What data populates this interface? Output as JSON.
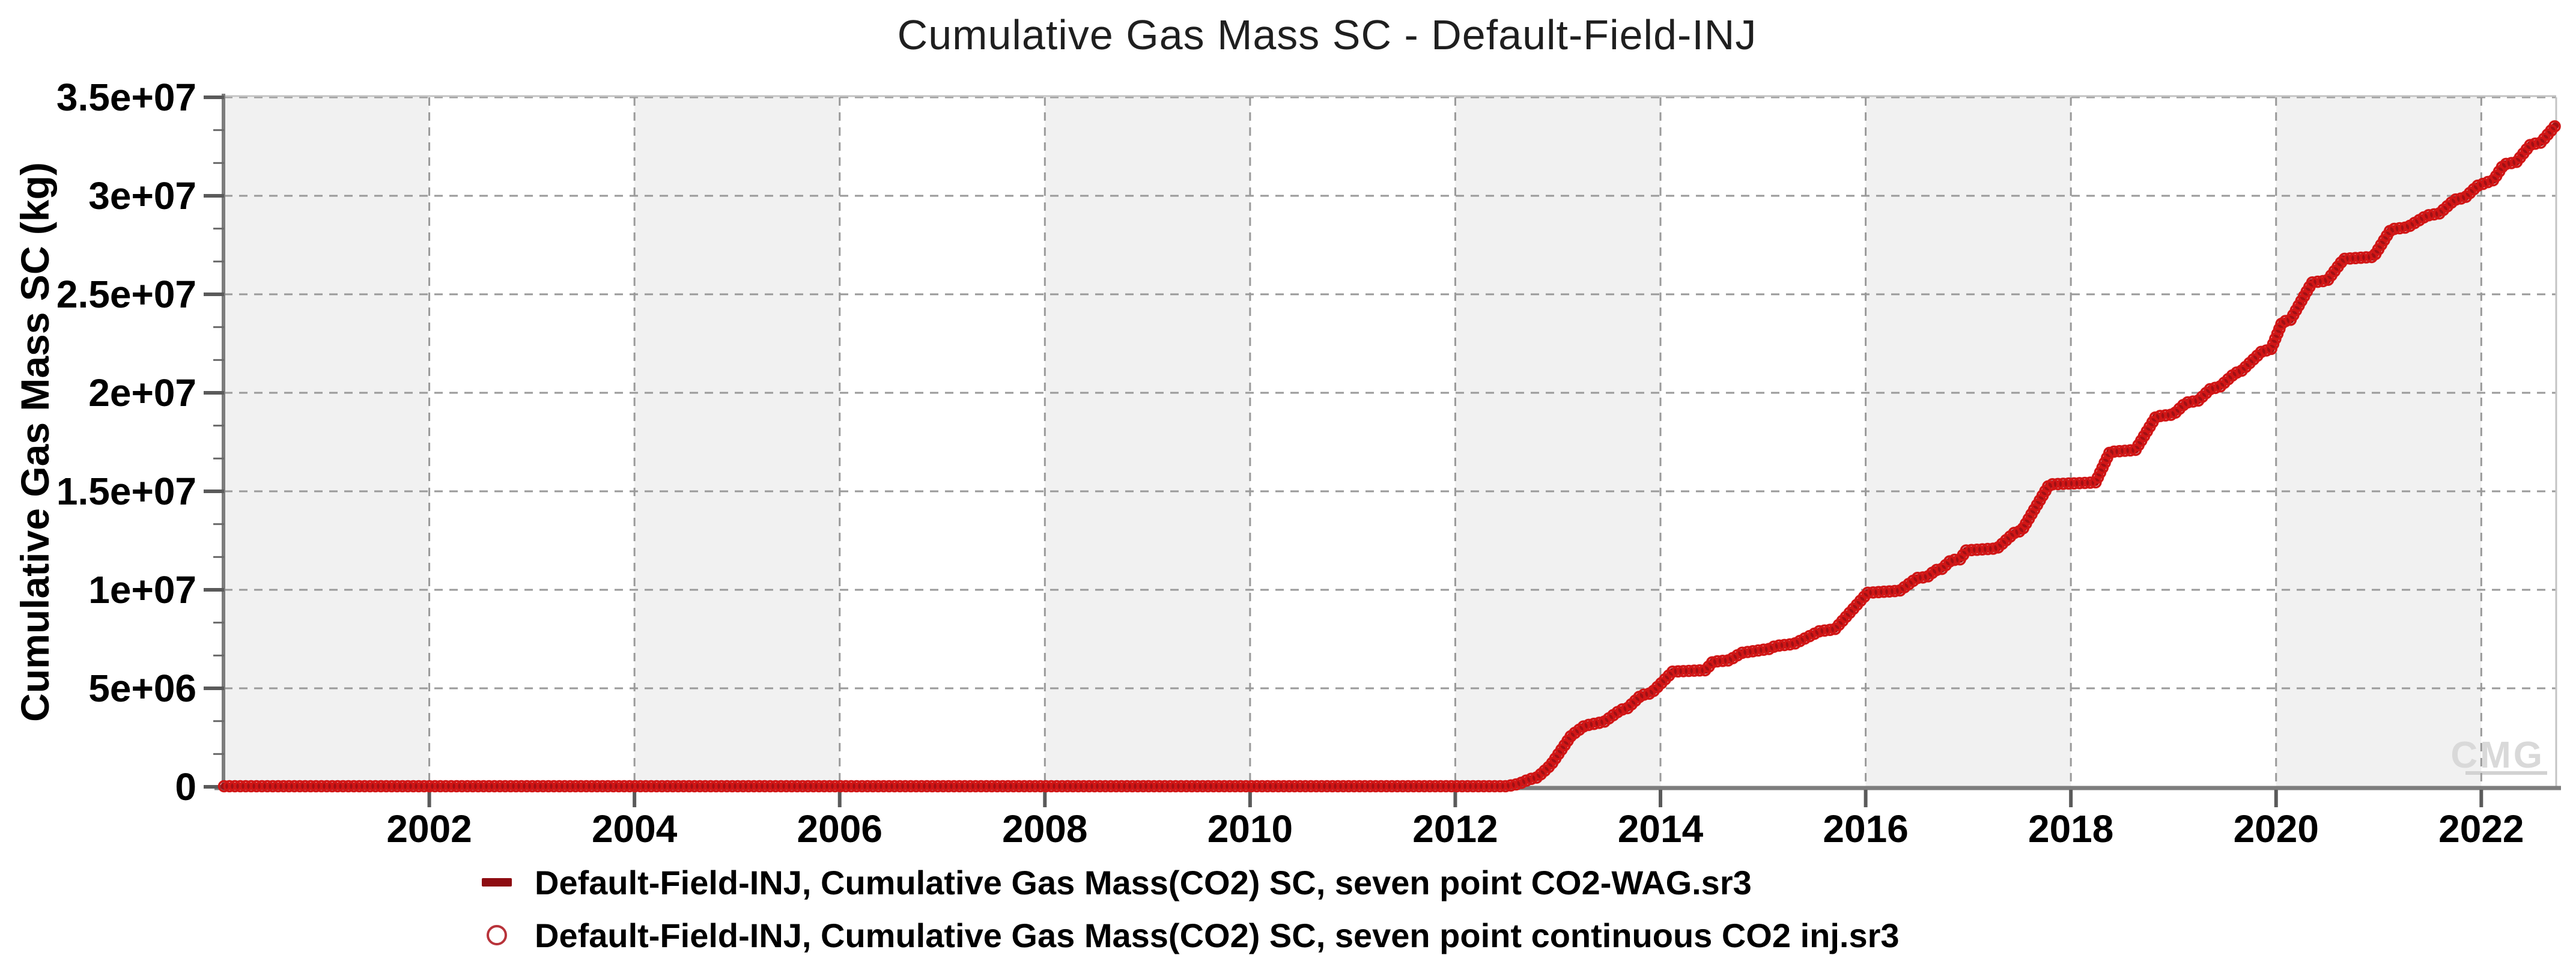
{
  "title": "Cumulative Gas Mass SC - Default-Field-INJ",
  "watermark": "CMG",
  "chart_data": {
    "type": "line",
    "title": "Cumulative Gas Mass SC - Default-Field-INJ",
    "xlabel": "",
    "ylabel": "Cumulative Gas Mass SC (kg)",
    "xlim": [
      2000,
      2022.73
    ],
    "ylim": [
      0,
      35000000
    ],
    "grid": "dashed-major",
    "legend_position": "bottom-left",
    "band_gray_color": "#f1f1f1",
    "band_white_color": "#ffffff",
    "grid_color": "#9a9a9a",
    "axis_color": "#7d7d7d",
    "x_ticks": [
      2002,
      2004,
      2006,
      2008,
      2010,
      2012,
      2014,
      2016,
      2018,
      2020,
      2022
    ],
    "y_ticks": [
      {
        "label": "0",
        "value": 0
      },
      {
        "label": "5e+06",
        "value": 5000000
      },
      {
        "label": "1e+07",
        "value": 10000000
      },
      {
        "label": "1.5e+07",
        "value": 15000000
      },
      {
        "label": "2e+07",
        "value": 20000000
      },
      {
        "label": "2.5e+07",
        "value": 25000000
      },
      {
        "label": "3e+07",
        "value": 30000000
      },
      {
        "label": "3.5e+07",
        "value": 35000000
      }
    ],
    "y_minor_divisions": 3,
    "series": [
      {
        "name": "Default-Field-INJ, Cumulative Gas Mass(CO2) SC, seven point CO2-WAG.sr3",
        "marker": "dash",
        "color": "#a01014",
        "legend_color": "#8e0d12",
        "points": [
          [
            2000.0,
            30000
          ],
          [
            2012.5,
            30000
          ],
          [
            2012.62,
            150000
          ],
          [
            2012.72,
            380000
          ],
          [
            2012.8,
            480000
          ],
          [
            2012.93,
            1100000
          ],
          [
            2013.05,
            2000000
          ],
          [
            2013.13,
            2600000
          ],
          [
            2013.26,
            3100000
          ],
          [
            2013.45,
            3300000
          ],
          [
            2013.61,
            3900000
          ],
          [
            2013.68,
            4000000
          ],
          [
            2013.81,
            4650000
          ],
          [
            2013.91,
            4750000
          ],
          [
            2014.12,
            5850000
          ],
          [
            2014.44,
            5920000
          ],
          [
            2014.51,
            6350000
          ],
          [
            2014.67,
            6420000
          ],
          [
            2014.79,
            6800000
          ],
          [
            2015.06,
            7000000
          ],
          [
            2015.12,
            7150000
          ],
          [
            2015.3,
            7250000
          ],
          [
            2015.55,
            7900000
          ],
          [
            2015.7,
            8000000
          ],
          [
            2016.02,
            9850000
          ],
          [
            2016.33,
            9950000
          ],
          [
            2016.5,
            10600000
          ],
          [
            2016.6,
            10650000
          ],
          [
            2016.68,
            11000000
          ],
          [
            2016.74,
            11050000
          ],
          [
            2016.83,
            11500000
          ],
          [
            2016.92,
            11550000
          ],
          [
            2016.98,
            12000000
          ],
          [
            2017.28,
            12100000
          ],
          [
            2017.45,
            12900000
          ],
          [
            2017.52,
            13000000
          ],
          [
            2017.79,
            15350000
          ],
          [
            2018.24,
            15450000
          ],
          [
            2018.38,
            17000000
          ],
          [
            2018.63,
            17100000
          ],
          [
            2018.83,
            18800000
          ],
          [
            2019.0,
            18900000
          ],
          [
            2019.12,
            19500000
          ],
          [
            2019.24,
            19600000
          ],
          [
            2019.36,
            20200000
          ],
          [
            2019.45,
            20300000
          ],
          [
            2019.6,
            21000000
          ],
          [
            2019.66,
            21100000
          ],
          [
            2019.86,
            22100000
          ],
          [
            2019.95,
            22200000
          ],
          [
            2020.06,
            23600000
          ],
          [
            2020.14,
            23700000
          ],
          [
            2020.35,
            25600000
          ],
          [
            2020.5,
            25700000
          ],
          [
            2020.66,
            26800000
          ],
          [
            2020.95,
            26900000
          ],
          [
            2021.12,
            28300000
          ],
          [
            2021.28,
            28400000
          ],
          [
            2021.47,
            29000000
          ],
          [
            2021.59,
            29100000
          ],
          [
            2021.74,
            29800000
          ],
          [
            2021.84,
            29900000
          ],
          [
            2021.96,
            30500000
          ],
          [
            2022.12,
            30800000
          ],
          [
            2022.22,
            31600000
          ],
          [
            2022.34,
            31700000
          ],
          [
            2022.48,
            32600000
          ],
          [
            2022.58,
            32700000
          ],
          [
            2022.72,
            33550000
          ]
        ]
      },
      {
        "name": "Default-Field-INJ, Cumulative Gas Mass(CO2) SC, seven point continuous CO2 inj.sr3",
        "marker": "circle",
        "color": "#d11616",
        "legend_color": "#b8333a",
        "points": [
          [
            2000.0,
            30000
          ],
          [
            2012.5,
            30000
          ],
          [
            2012.62,
            150000
          ],
          [
            2012.72,
            380000
          ],
          [
            2012.8,
            480000
          ],
          [
            2012.93,
            1100000
          ],
          [
            2013.05,
            2000000
          ],
          [
            2013.13,
            2600000
          ],
          [
            2013.26,
            3100000
          ],
          [
            2013.45,
            3300000
          ],
          [
            2013.61,
            3900000
          ],
          [
            2013.68,
            4000000
          ],
          [
            2013.81,
            4650000
          ],
          [
            2013.91,
            4750000
          ],
          [
            2014.12,
            5850000
          ],
          [
            2014.44,
            5920000
          ],
          [
            2014.51,
            6350000
          ],
          [
            2014.67,
            6420000
          ],
          [
            2014.79,
            6800000
          ],
          [
            2015.06,
            7000000
          ],
          [
            2015.12,
            7150000
          ],
          [
            2015.3,
            7250000
          ],
          [
            2015.55,
            7900000
          ],
          [
            2015.7,
            8000000
          ],
          [
            2016.02,
            9850000
          ],
          [
            2016.33,
            9950000
          ],
          [
            2016.5,
            10600000
          ],
          [
            2016.6,
            10650000
          ],
          [
            2016.68,
            11000000
          ],
          [
            2016.74,
            11050000
          ],
          [
            2016.83,
            11500000
          ],
          [
            2016.92,
            11550000
          ],
          [
            2016.98,
            12000000
          ],
          [
            2017.28,
            12100000
          ],
          [
            2017.45,
            12900000
          ],
          [
            2017.52,
            13000000
          ],
          [
            2017.79,
            15350000
          ],
          [
            2018.24,
            15450000
          ],
          [
            2018.38,
            17000000
          ],
          [
            2018.63,
            17100000
          ],
          [
            2018.83,
            18800000
          ],
          [
            2019.0,
            18900000
          ],
          [
            2019.12,
            19500000
          ],
          [
            2019.24,
            19600000
          ],
          [
            2019.36,
            20200000
          ],
          [
            2019.45,
            20300000
          ],
          [
            2019.6,
            21000000
          ],
          [
            2019.66,
            21100000
          ],
          [
            2019.86,
            22100000
          ],
          [
            2019.95,
            22200000
          ],
          [
            2020.06,
            23600000
          ],
          [
            2020.14,
            23700000
          ],
          [
            2020.35,
            25600000
          ],
          [
            2020.5,
            25700000
          ],
          [
            2020.66,
            26800000
          ],
          [
            2020.95,
            26900000
          ],
          [
            2021.12,
            28300000
          ],
          [
            2021.28,
            28400000
          ],
          [
            2021.47,
            29000000
          ],
          [
            2021.59,
            29100000
          ],
          [
            2021.74,
            29800000
          ],
          [
            2021.84,
            29900000
          ],
          [
            2021.96,
            30500000
          ],
          [
            2022.12,
            30800000
          ],
          [
            2022.22,
            31600000
          ],
          [
            2022.34,
            31700000
          ],
          [
            2022.48,
            32600000
          ],
          [
            2022.58,
            32700000
          ],
          [
            2022.72,
            33550000
          ]
        ]
      }
    ]
  },
  "legend": {
    "items": [
      {
        "label": "Default-Field-INJ, Cumulative Gas Mass(CO2) SC, seven point CO2-WAG.sr3"
      },
      {
        "label": "Default-Field-INJ, Cumulative Gas Mass(CO2) SC, seven point continuous CO2 inj.sr3"
      }
    ]
  }
}
